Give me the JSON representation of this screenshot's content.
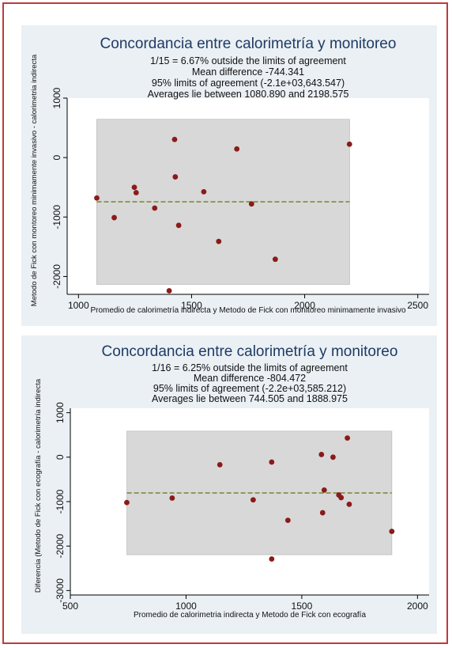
{
  "chart_data": [
    {
      "type": "scatter",
      "title": "Concordancia entre calorimetría y monitoreo",
      "subtitle_lines": [
        "1/15 =    6.67% outside the limits of agreement",
        "Mean difference -744.341",
        "95% limits of agreement (-2.1e+03,643.547)",
        "Averages lie between 1080.890 and 2198.575"
      ],
      "xlabel": "Promedio de calorimetría indirecta y Metodo de Fick con monitoreo minimamente invasivo",
      "ylabel": "Metodo de Fick con montoreo minimamente invasivo - calorimetria indirecta",
      "xlim": [
        950,
        2550
      ],
      "ylim": [
        -2300,
        1000
      ],
      "xticks": [
        1000,
        1500,
        2000,
        2500
      ],
      "yticks": [
        1000,
        0,
        -1000,
        -2000
      ],
      "mean_difference": -744.341,
      "limits_of_agreement": [
        -2133,
        643.547
      ],
      "averages_range": [
        1080.89,
        2198.575
      ],
      "points": [
        {
          "x": 1081,
          "y": -680
        },
        {
          "x": 1158,
          "y": -1010
        },
        {
          "x": 1247,
          "y": -500
        },
        {
          "x": 1255,
          "y": -590
        },
        {
          "x": 1337,
          "y": -850
        },
        {
          "x": 1401,
          "y": -2240
        },
        {
          "x": 1425,
          "y": 305
        },
        {
          "x": 1428,
          "y": -325
        },
        {
          "x": 1443,
          "y": -1140
        },
        {
          "x": 1554,
          "y": -575
        },
        {
          "x": 1620,
          "y": -1410
        },
        {
          "x": 1700,
          "y": 145
        },
        {
          "x": 1765,
          "y": -780
        },
        {
          "x": 1870,
          "y": -1710
        },
        {
          "x": 2198,
          "y": 225
        }
      ],
      "colors": {
        "point": "#8b1a1a",
        "mean_line": "#7f8a3a",
        "band": "#d8d8d8"
      }
    },
    {
      "type": "scatter",
      "title": "Concordancia entre calorimetría y monitoreo",
      "subtitle_lines": [
        "1/16 =    6.25% outside the limits of agreement",
        "Mean difference -804.472",
        "95% limits of agreement (-2.2e+03,585.212)",
        "Averages lie between 744.505 and 1888.975"
      ],
      "xlabel": "Promedio de calorimetria indirecta y Metodo de Fick con ecografía",
      "ylabel": "Diferencia (Metodo de Fick con ecografía - calorimetría indirecta",
      "xlim": [
        500,
        2050
      ],
      "ylim": [
        -3100,
        1100
      ],
      "xticks": [
        500,
        1000,
        1500,
        2000
      ],
      "yticks": [
        1000,
        0,
        -1000,
        -2000,
        -3000
      ],
      "mean_difference": -804.472,
      "limits_of_agreement": [
        -2194,
        585.212
      ],
      "averages_range": [
        744.505,
        1888.975
      ],
      "points": [
        {
          "x": 744,
          "y": -1020
        },
        {
          "x": 940,
          "y": -920
        },
        {
          "x": 1146,
          "y": -170
        },
        {
          "x": 1290,
          "y": -960
        },
        {
          "x": 1370,
          "y": -110
        },
        {
          "x": 1370,
          "y": -2290
        },
        {
          "x": 1440,
          "y": -1420
        },
        {
          "x": 1585,
          "y": 60
        },
        {
          "x": 1590,
          "y": -1250
        },
        {
          "x": 1597,
          "y": -740
        },
        {
          "x": 1635,
          "y": 0
        },
        {
          "x": 1660,
          "y": -850
        },
        {
          "x": 1670,
          "y": -910
        },
        {
          "x": 1697,
          "y": 430
        },
        {
          "x": 1705,
          "y": -1060
        },
        {
          "x": 1889,
          "y": -1670
        }
      ],
      "colors": {
        "point": "#8b1a1a",
        "mean_line": "#7f8a3a",
        "band": "#d8d8d8"
      }
    }
  ]
}
